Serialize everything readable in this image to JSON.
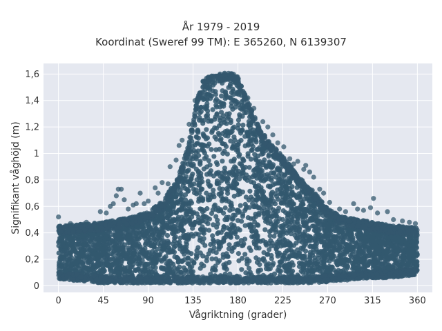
{
  "chart_data": {
    "type": "scatter",
    "title": "År 1979 - 2019",
    "subtitle": "Koordinat (Sweref 99 TM): E 365260, N 6139307",
    "xlabel": "Vågriktning (grader)",
    "ylabel": "Signifikant våghöjd (m)",
    "xlim": [
      -15,
      375
    ],
    "ylim": [
      -0.05,
      1.68
    ],
    "x_ticks": [
      0,
      45,
      90,
      135,
      180,
      225,
      270,
      315,
      360
    ],
    "x_tick_labels": [
      "0",
      "45",
      "90",
      "135",
      "180",
      "225",
      "270",
      "315",
      "360"
    ],
    "y_ticks": [
      0,
      0.2,
      0.4,
      0.6,
      0.8,
      1.0,
      1.2,
      1.4,
      1.6
    ],
    "y_tick_labels": [
      "0",
      "0,2",
      "0,4",
      "0,6",
      "0,8",
      "1",
      "1,2",
      "1,4",
      "1,6"
    ],
    "grid": true,
    "marker_color": "#33586e",
    "background_color": "#e5e8f0",
    "envelope": {
      "direction": [
        0,
        15,
        30,
        45,
        60,
        75,
        90,
        105,
        120,
        130,
        135,
        140,
        145,
        150,
        160,
        170,
        175,
        180,
        190,
        200,
        210,
        225,
        240,
        255,
        270,
        285,
        300,
        315,
        330,
        345,
        360
      ],
      "max_height": [
        0.45,
        0.46,
        0.47,
        0.48,
        0.5,
        0.52,
        0.56,
        0.64,
        0.82,
        1.05,
        1.25,
        1.45,
        1.55,
        1.58,
        1.6,
        1.61,
        1.61,
        1.58,
        1.4,
        1.22,
        1.1,
        0.98,
        0.83,
        0.72,
        0.58,
        0.52,
        0.5,
        0.48,
        0.46,
        0.45,
        0.44
      ],
      "min_height": [
        0.05,
        0.04,
        0.03,
        0.02,
        0.02,
        0.02,
        0.02,
        0.02,
        0.02,
        0.02,
        0.02,
        0.02,
        0.02,
        0.02,
        0.02,
        0.02,
        0.02,
        0.02,
        0.02,
        0.02,
        0.02,
        0.02,
        0.02,
        0.02,
        0.03,
        0.04,
        0.05,
        0.06,
        0.06,
        0.07,
        0.08
      ]
    },
    "outliers": [
      [
        0,
        0.52
      ],
      [
        12,
        0.47
      ],
      [
        28,
        0.48
      ],
      [
        38,
        0.44
      ],
      [
        42,
        0.56
      ],
      [
        48,
        0.55
      ],
      [
        52,
        0.6
      ],
      [
        55,
        0.62
      ],
      [
        58,
        0.68
      ],
      [
        60,
        0.73
      ],
      [
        63,
        0.73
      ],
      [
        66,
        0.65
      ],
      [
        70,
        0.58
      ],
      [
        75,
        0.61
      ],
      [
        78,
        0.62
      ],
      [
        82,
        0.7
      ],
      [
        86,
        0.62
      ],
      [
        90,
        0.64
      ],
      [
        97,
        0.74
      ],
      [
        100,
        0.7
      ],
      [
        104,
        0.78
      ],
      [
        110,
        0.77
      ],
      [
        112,
        0.9
      ],
      [
        118,
        0.95
      ],
      [
        121,
        1.06
      ],
      [
        124,
        1.1
      ],
      [
        131,
        1.22
      ],
      [
        137,
        1.4
      ],
      [
        190,
        1.42
      ],
      [
        196,
        1.34
      ],
      [
        205,
        1.24
      ],
      [
        210,
        1.2
      ],
      [
        215,
        1.14
      ],
      [
        220,
        1.08
      ],
      [
        226,
        1.05
      ],
      [
        232,
        0.96
      ],
      [
        236,
        0.92
      ],
      [
        240,
        0.94
      ],
      [
        246,
        0.88
      ],
      [
        248,
        0.91
      ],
      [
        252,
        0.86
      ],
      [
        256,
        0.82
      ],
      [
        262,
        0.73
      ],
      [
        266,
        0.7
      ],
      [
        272,
        0.63
      ],
      [
        282,
        0.58
      ],
      [
        288,
        0.56
      ],
      [
        296,
        0.62
      ],
      [
        300,
        0.58
      ],
      [
        306,
        0.57
      ],
      [
        313,
        0.59
      ],
      [
        316,
        0.66
      ],
      [
        320,
        0.55
      ],
      [
        330,
        0.56
      ],
      [
        336,
        0.5
      ],
      [
        345,
        0.49
      ],
      [
        352,
        0.48
      ],
      [
        358,
        0.47
      ]
    ]
  }
}
